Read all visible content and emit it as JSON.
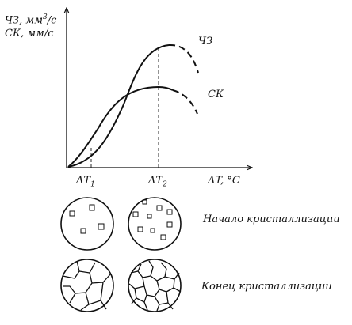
{
  "y_axis": {
    "line1_main": "ЧЗ, мм",
    "line1_sup": "3",
    "line1_tail": "/с",
    "line2": "СК, мм/с"
  },
  "curves": {
    "cz_label": "ЧЗ",
    "sk_label": "СК"
  },
  "x_axis": {
    "tick1_main": "ΔT",
    "tick1_sub": "1",
    "tick2_main": "ΔT",
    "tick2_sub": "2",
    "label": "ΔT, °C"
  },
  "captions": {
    "start": "Начало кристаллизации",
    "end": "Конец кристаллизации"
  }
}
